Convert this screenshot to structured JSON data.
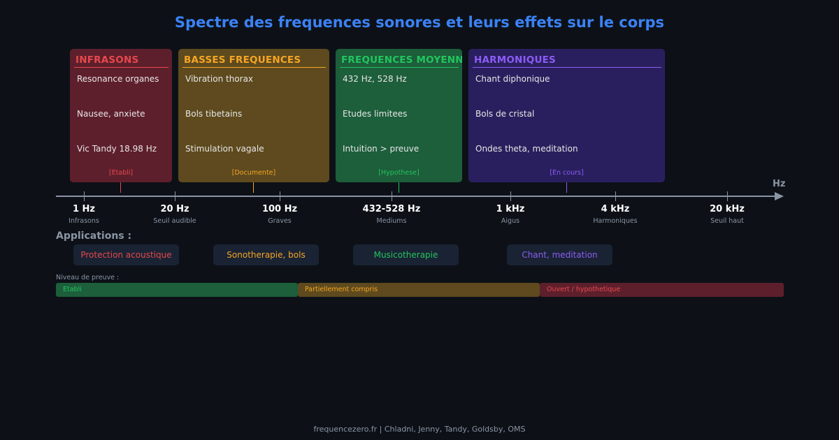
{
  "title": "Spectre des frequences sonores et leurs effets sur le corps",
  "colors": {
    "background": "#0d1117",
    "title": "#3b82f6",
    "red": "#e5484d",
    "orange": "#f5a524",
    "green": "#22c55e",
    "purple": "#8b5cf6",
    "axis": "#8b95a5"
  },
  "bands": [
    {
      "name": "INFRASONS",
      "items": [
        "Resonance organes",
        "Nausee, anxiete",
        "Vic Tandy 18.98 Hz"
      ],
      "evidence": "[Etabli]"
    },
    {
      "name": "BASSES FREQUENCES",
      "items": [
        "Vibration thorax",
        "Bols tibetains",
        "Stimulation vagale"
      ],
      "evidence": "[Documente]"
    },
    {
      "name": "FREQUENCES MOYENNES",
      "items": [
        "432 Hz, 528 Hz",
        "Etudes limitees",
        "Intuition > preuve"
      ],
      "evidence": "[Hypothese]"
    },
    {
      "name": "HARMONIQUES",
      "items": [
        "Chant diphonique",
        "Bols de cristal",
        "Ondes theta, meditation"
      ],
      "evidence": "[En cours]"
    }
  ],
  "axis": {
    "unit": "Hz",
    "ticks": [
      {
        "label": "1 Hz",
        "sub": "Infrasons"
      },
      {
        "label": "20 Hz",
        "sub": "Seuil audible"
      },
      {
        "label": "100 Hz",
        "sub": "Graves"
      },
      {
        "label": "432-528 Hz",
        "sub": "Mediums"
      },
      {
        "label": "1 kHz",
        "sub": "Aigus"
      },
      {
        "label": "4 kHz",
        "sub": "Harmoniques"
      },
      {
        "label": "20 kHz",
        "sub": "Seuil haut"
      }
    ]
  },
  "applications": {
    "heading": "Applications :",
    "items": [
      "Protection acoustique",
      "Sonotherapie, bols",
      "Musicotherapie",
      "Chant, meditation"
    ]
  },
  "proof": {
    "heading": "Niveau de preuve :",
    "levels": [
      "Etabli",
      "Partiellement compris",
      "Ouvert / hypothetique"
    ]
  },
  "footer": "frequencezero.fr | Chladni, Jenny, Tandy, Goldsby, OMS"
}
